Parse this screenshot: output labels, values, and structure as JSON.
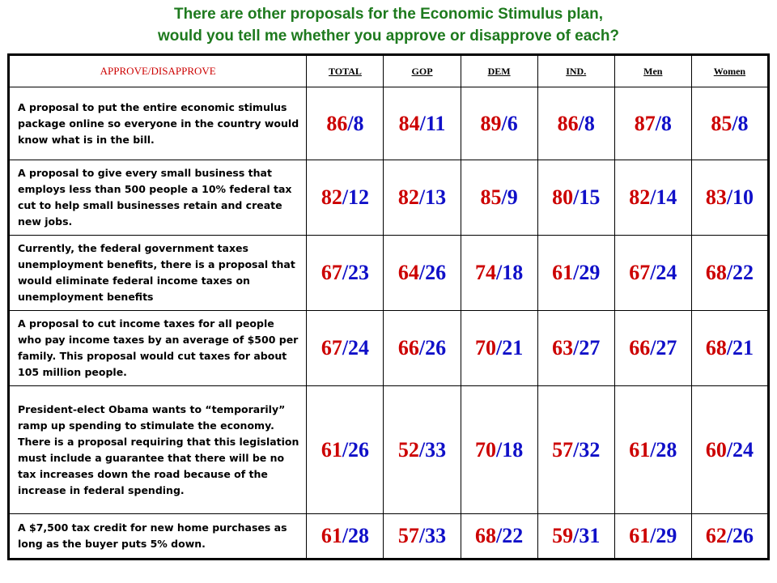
{
  "title": {
    "line1": "There are other proposals for the Economic Stimulus plan,",
    "line2": "would you tell me whether you approve or disapprove of each?"
  },
  "header": {
    "approve": "APPROVE",
    "slash": "/",
    "disapprove": "DISAPPROVE",
    "columns": [
      "TOTAL",
      "GOP",
      "DEM",
      "IND.",
      "Men",
      "Women"
    ]
  },
  "rows": [
    {
      "question": "A proposal to put the entire economic stimulus package online so everyone in the country would know what is in the bill.",
      "values": [
        {
          "a": "86",
          "d": "8"
        },
        {
          "a": "84",
          "d": "11"
        },
        {
          "a": "89",
          "d": "6"
        },
        {
          "a": "86",
          "d": "8"
        },
        {
          "a": "87",
          "d": "8"
        },
        {
          "a": "85",
          "d": "8"
        }
      ]
    },
    {
      "question": "A proposal to give every small business that employs less than 500 people a 10% federal tax cut to help small businesses retain and create new jobs.",
      "values": [
        {
          "a": "82",
          "d": "12"
        },
        {
          "a": "82",
          "d": "13"
        },
        {
          "a": "85",
          "d": "9"
        },
        {
          "a": "80",
          "d": "15"
        },
        {
          "a": "82",
          "d": "14"
        },
        {
          "a": "83",
          "d": "10"
        }
      ]
    },
    {
      "question": "Currently, the federal government taxes unemployment benefits, there is a proposal that would eliminate federal income taxes on unemployment benefits",
      "values": [
        {
          "a": "67",
          "d": "23"
        },
        {
          "a": "64",
          "d": "26"
        },
        {
          "a": "74",
          "d": "18"
        },
        {
          "a": "61",
          "d": "29"
        },
        {
          "a": "67",
          "d": "24"
        },
        {
          "a": "68",
          "d": "22"
        }
      ]
    },
    {
      "question": "A proposal to cut income taxes for all people who pay income taxes by an average of $500 per family.  This proposal would cut taxes for about 105 million people.",
      "values": [
        {
          "a": "67",
          "d": "24"
        },
        {
          "a": "66",
          "d": "26"
        },
        {
          "a": "70",
          "d": "21"
        },
        {
          "a": "63",
          "d": "27"
        },
        {
          "a": "66",
          "d": "27"
        },
        {
          "a": "68",
          "d": "21"
        }
      ]
    },
    {
      "question": "President-elect Obama wants to “temporarily” ramp up spending to stimulate the economy.  There is a proposal requiring that this legislation must include a guarantee that there will be no tax increases down the road because of the increase in federal spending.",
      "values": [
        {
          "a": "61",
          "d": "26"
        },
        {
          "a": "52",
          "d": "33"
        },
        {
          "a": "70",
          "d": "18"
        },
        {
          "a": "57",
          "d": "32"
        },
        {
          "a": "61",
          "d": "28"
        },
        {
          "a": "60",
          "d": "24"
        }
      ]
    },
    {
      "question": "A $7,500 tax credit for new home purchases as long as the buyer puts 5% down.",
      "values": [
        {
          "a": "61",
          "d": "28"
        },
        {
          "a": "57",
          "d": "33"
        },
        {
          "a": "68",
          "d": "22"
        },
        {
          "a": "59",
          "d": "31"
        },
        {
          "a": "61",
          "d": "29"
        },
        {
          "a": "62",
          "d": "26"
        }
      ]
    }
  ],
  "colors": {
    "title": "#1e7a1e",
    "approve": "#cc0000",
    "disapprove": "#1010c8"
  }
}
